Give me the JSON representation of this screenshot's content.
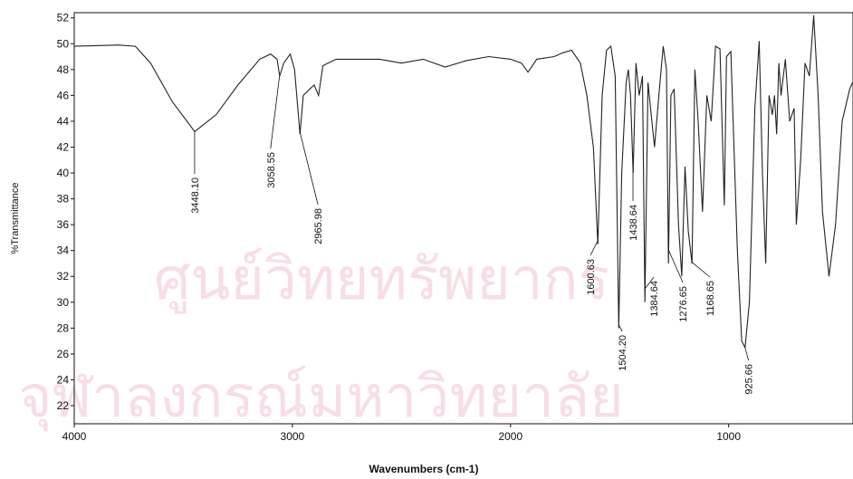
{
  "chart_data": {
    "type": "line",
    "x_label": "Wavenumbers (cm-1)",
    "y_label": "%Transmittance",
    "watermark": [
      "ศูนย์วิทยทรัพยากร",
      "จุฬาลงกรณ์มหาวิทยาลัย"
    ],
    "xlim": [
      4000,
      430
    ],
    "ylim": [
      20.6,
      52.4
    ],
    "xticks": [
      4000,
      3000,
      2000,
      1000
    ],
    "yticks": [
      22,
      24,
      26,
      28,
      30,
      32,
      34,
      36,
      38,
      40,
      42,
      44,
      46,
      48,
      50,
      52
    ],
    "color": "#222222",
    "x": [
      4000,
      3800,
      3720,
      3650,
      3550,
      3448,
      3350,
      3250,
      3150,
      3100,
      3070,
      3058,
      3040,
      3010,
      2990,
      2965,
      2950,
      2920,
      2900,
      2880,
      2860,
      2800,
      2600,
      2500,
      2400,
      2300,
      2200,
      2100,
      2000,
      1950,
      1920,
      1880,
      1800,
      1760,
      1720,
      1680,
      1650,
      1620,
      1600,
      1580,
      1560,
      1540,
      1520,
      1504,
      1490,
      1470,
      1460,
      1450,
      1438,
      1425,
      1410,
      1395,
      1384,
      1370,
      1340,
      1320,
      1300,
      1285,
      1276,
      1265,
      1250,
      1230,
      1215,
      1200,
      1185,
      1168,
      1155,
      1140,
      1120,
      1100,
      1080,
      1060,
      1040,
      1020,
      1010,
      990,
      960,
      940,
      925,
      905,
      880,
      860,
      845,
      830,
      815,
      800,
      790,
      780,
      770,
      760,
      740,
      720,
      700,
      690,
      670,
      650,
      630,
      610,
      590,
      570,
      540,
      510,
      480,
      445,
      432
    ],
    "y": [
      49.8,
      49.9,
      49.8,
      48.5,
      45.5,
      43.2,
      44.5,
      46.8,
      48.8,
      49.2,
      48.8,
      47.5,
      48.5,
      49.2,
      48,
      43,
      46,
      46.5,
      46.8,
      46,
      48.3,
      48.8,
      48.8,
      48.5,
      48.8,
      48.2,
      48.7,
      49,
      48.8,
      48.5,
      47.8,
      48.8,
      49,
      49.3,
      49.5,
      48.5,
      46,
      42,
      34.5,
      46,
      49.5,
      49.8,
      47.5,
      28,
      40,
      47,
      48,
      46,
      40,
      48.5,
      46,
      47.5,
      30,
      47,
      42,
      46,
      49.8,
      48,
      33,
      46,
      46.5,
      36,
      32,
      40.5,
      35.5,
      33,
      48,
      44,
      37,
      46,
      44,
      49.8,
      49.6,
      37.5,
      49,
      49.4,
      34,
      27,
      26.5,
      30,
      45,
      50.2,
      40,
      33,
      46,
      44.5,
      46,
      43,
      48.5,
      46,
      48.8,
      44,
      45,
      36,
      41,
      48.5,
      47.5,
      52.2,
      46,
      37,
      32,
      36,
      44,
      46.5,
      47
    ],
    "annotations": [
      {
        "text": "3448.10",
        "x": 3448.1
      },
      {
        "text": "3058.55",
        "x": 3058.55
      },
      {
        "text": "2965.98",
        "x": 2965.98
      },
      {
        "text": "1600.63",
        "x": 1600.63
      },
      {
        "text": "1504.20",
        "x": 1504.2
      },
      {
        "text": "1438.64",
        "x": 1438.64
      },
      {
        "text": "1384.64",
        "x": 1384.64
      },
      {
        "text": "1276.65",
        "x": 1276.65
      },
      {
        "text": "1168.65",
        "x": 1168.65
      },
      {
        "text": "925.66",
        "x": 925.66
      }
    ]
  }
}
